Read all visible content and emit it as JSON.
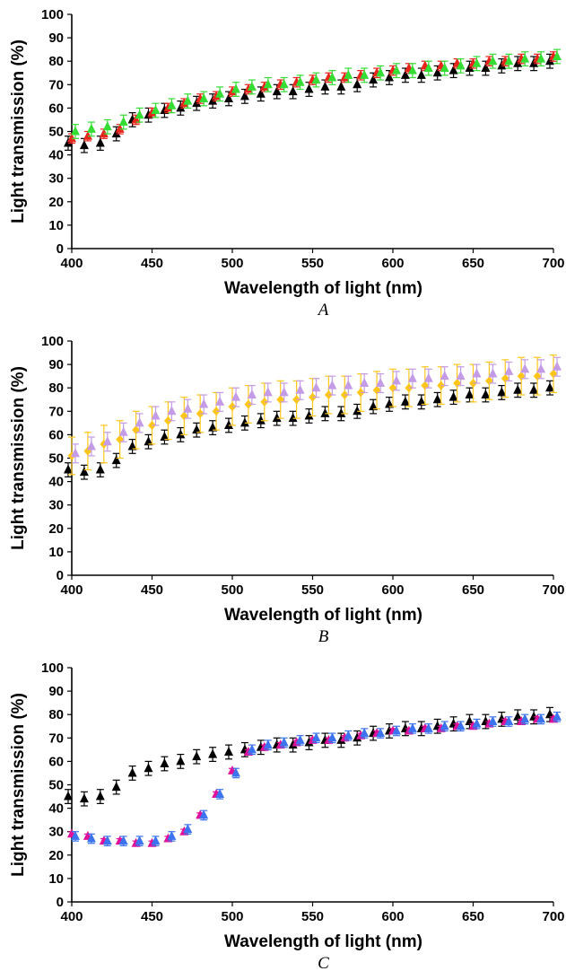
{
  "chart_data": [
    {
      "type": "scatter",
      "panel_label": "A",
      "xlabel": "Wavelength of light (nm)",
      "ylabel": "Light transmission (%)",
      "xlim": [
        400,
        700
      ],
      "ylim": [
        0,
        100
      ],
      "xticks": [
        400,
        450,
        500,
        550,
        600,
        650,
        700
      ],
      "yticks": [
        0,
        10,
        20,
        30,
        40,
        50,
        60,
        70,
        80,
        90,
        100
      ],
      "grid": false,
      "x": [
        400,
        410,
        420,
        430,
        440,
        450,
        460,
        470,
        480,
        490,
        500,
        510,
        520,
        530,
        540,
        550,
        560,
        570,
        580,
        590,
        600,
        610,
        620,
        630,
        640,
        650,
        660,
        670,
        680,
        690,
        700
      ],
      "series": [
        {
          "color": "#000000",
          "marker": "triangle",
          "err": 3,
          "values": [
            45,
            44,
            45,
            49,
            55,
            57,
            59,
            60,
            62,
            63,
            64,
            65,
            66,
            67,
            67,
            68,
            69,
            69,
            70,
            72,
            73,
            74,
            74,
            75,
            76,
            77,
            77,
            78,
            79,
            79,
            80
          ]
        },
        {
          "color": "#e8241c",
          "marker": "triangle",
          "err": 2,
          "values": [
            47,
            48,
            49,
            51,
            55,
            58,
            60,
            62,
            64,
            65,
            67,
            68,
            69,
            70,
            71,
            72,
            73,
            73,
            74,
            75,
            76,
            77,
            78,
            78,
            79,
            79,
            80,
            80,
            81,
            81,
            82
          ]
        },
        {
          "color": "#33dd33",
          "marker": "triangle",
          "err": 3,
          "values": [
            50,
            51,
            52,
            54,
            57,
            59,
            61,
            63,
            64,
            66,
            68,
            69,
            70,
            70,
            71,
            72,
            73,
            74,
            74,
            75,
            76,
            76,
            77,
            77,
            78,
            79,
            80,
            80,
            81,
            81,
            82
          ]
        }
      ]
    },
    {
      "type": "scatter",
      "panel_label": "B",
      "xlabel": "Wavelength of light (nm)",
      "ylabel": "Light transmission (%)",
      "xlim": [
        400,
        700
      ],
      "ylim": [
        0,
        100
      ],
      "xticks": [
        400,
        450,
        500,
        550,
        600,
        650,
        700
      ],
      "yticks": [
        0,
        10,
        20,
        30,
        40,
        50,
        60,
        70,
        80,
        90,
        100
      ],
      "grid": false,
      "x": [
        400,
        410,
        420,
        430,
        440,
        450,
        460,
        470,
        480,
        490,
        500,
        510,
        520,
        530,
        540,
        550,
        560,
        570,
        580,
        590,
        600,
        610,
        620,
        630,
        640,
        650,
        660,
        670,
        680,
        690,
        700
      ],
      "series": [
        {
          "color": "#000000",
          "marker": "triangle",
          "err": 3,
          "values": [
            45,
            44,
            45,
            49,
            55,
            57,
            59,
            60,
            62,
            63,
            64,
            65,
            66,
            67,
            67,
            68,
            69,
            69,
            70,
            72,
            73,
            74,
            74,
            75,
            76,
            77,
            77,
            78,
            79,
            79,
            80
          ]
        },
        {
          "color": "#ffc61a",
          "marker": "diamond",
          "err": 8,
          "values": [
            51,
            53,
            56,
            58,
            62,
            64,
            66,
            68,
            69,
            70,
            72,
            73,
            74,
            75,
            75,
            76,
            77,
            77,
            78,
            79,
            80,
            80,
            81,
            81,
            82,
            82,
            83,
            84,
            85,
            85,
            86
          ]
        },
        {
          "color": "#c39be6",
          "marker": "triangle",
          "err": 4,
          "values": [
            52,
            55,
            57,
            61,
            65,
            68,
            70,
            71,
            73,
            74,
            76,
            77,
            78,
            78,
            79,
            80,
            81,
            81,
            82,
            82,
            83,
            84,
            84,
            85,
            85,
            86,
            86,
            87,
            88,
            88,
            89
          ]
        }
      ]
    },
    {
      "type": "scatter",
      "panel_label": "C",
      "xlabel": "Wavelength of light (nm)",
      "ylabel": "Light transmission (%)",
      "xlim": [
        400,
        700
      ],
      "ylim": [
        0,
        100
      ],
      "xticks": [
        400,
        450,
        500,
        550,
        600,
        650,
        700
      ],
      "yticks": [
        0,
        10,
        20,
        30,
        40,
        50,
        60,
        70,
        80,
        90,
        100
      ],
      "grid": false,
      "x": [
        400,
        410,
        420,
        430,
        440,
        450,
        460,
        470,
        480,
        490,
        500,
        510,
        520,
        530,
        540,
        550,
        560,
        570,
        580,
        590,
        600,
        610,
        620,
        630,
        640,
        650,
        660,
        670,
        680,
        690,
        700
      ],
      "series": [
        {
          "color": "#000000",
          "marker": "triangle",
          "err": 3,
          "values": [
            45,
            44,
            45,
            49,
            55,
            57,
            59,
            60,
            62,
            63,
            64,
            65,
            66,
            67,
            67,
            68,
            69,
            69,
            70,
            72,
            73,
            74,
            74,
            75,
            76,
            77,
            77,
            78,
            79,
            79,
            80
          ]
        },
        {
          "color": "#e0109a",
          "marker": "triangle",
          "err": 1,
          "values": [
            29,
            28,
            26,
            26,
            25,
            25,
            27,
            30,
            37,
            46,
            56,
            64,
            66,
            67,
            68,
            69,
            69,
            70,
            71,
            72,
            73,
            73,
            74,
            74,
            75,
            75,
            76,
            77,
            77,
            78,
            78
          ]
        },
        {
          "color": "#3b73f0",
          "marker": "triangle",
          "err": 2,
          "values": [
            28,
            27,
            26,
            26,
            26,
            26,
            28,
            31,
            37,
            46,
            55,
            65,
            67,
            68,
            69,
            70,
            70,
            71,
            72,
            72,
            73,
            74,
            74,
            75,
            75,
            76,
            77,
            77,
            78,
            78,
            79
          ]
        }
      ]
    }
  ]
}
